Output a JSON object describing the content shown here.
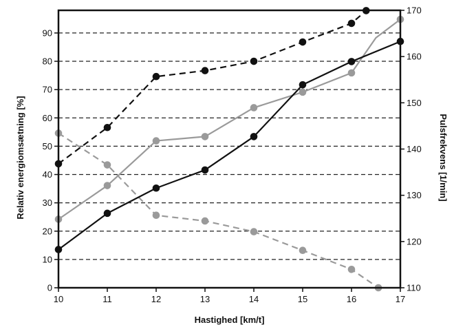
{
  "chart_data": {
    "type": "line",
    "xlabel": "Hastighed [km/t]",
    "ylabel_left": "Relativ energiomsætning [%]",
    "ylabel_right": "Pulsfrekvens [1/min]",
    "xlim": [
      10,
      17
    ],
    "ylim_left": [
      0,
      98
    ],
    "ylim_right": [
      110,
      170
    ],
    "x_ticks": [
      10,
      11,
      12,
      13,
      14,
      15,
      16,
      17
    ],
    "y_left_ticks": [
      0,
      10,
      20,
      30,
      40,
      50,
      60,
      70,
      80,
      90
    ],
    "y_right_ticks": [
      110,
      120,
      130,
      140,
      150,
      160,
      170
    ],
    "grid": "horizontal dashed at left-axis ticks",
    "series": [
      {
        "style": "black solid",
        "axis": "left",
        "color": "#111111",
        "dash": false,
        "points": [
          [
            10,
            13.5
          ],
          [
            11,
            26.3
          ],
          [
            12,
            35.2
          ],
          [
            13,
            41.6
          ],
          [
            14,
            53.4
          ],
          [
            15,
            71.7
          ],
          [
            16,
            79.9
          ],
          [
            17,
            87.0
          ]
        ]
      },
      {
        "style": "black dashed",
        "axis": "left",
        "color": "#111111",
        "dash": true,
        "points": [
          [
            10,
            43.8
          ],
          [
            11,
            56.6
          ],
          [
            12,
            74.6
          ],
          [
            13,
            76.7
          ],
          [
            14,
            80.0
          ],
          [
            15,
            86.8
          ],
          [
            16,
            93.4
          ],
          [
            16.3,
            97.9
          ]
        ]
      },
      {
        "style": "gray solid",
        "axis": "left",
        "color": "#9a9a9a",
        "dash": false,
        "points": [
          [
            10,
            24.2
          ],
          [
            11,
            36.1
          ],
          [
            12,
            51.9
          ],
          [
            13,
            53.4
          ],
          [
            14,
            63.6
          ],
          [
            15,
            69.1
          ],
          [
            16,
            75.9
          ],
          [
            16.5,
            88.3
          ],
          [
            17,
            94.8
          ]
        ],
        "markers_at": [
          10,
          11,
          12,
          13,
          14,
          15,
          16,
          17
        ]
      },
      {
        "style": "gray dashed",
        "axis": "left",
        "color": "#9a9a9a",
        "dash": true,
        "points": [
          [
            10,
            54.6
          ],
          [
            11,
            43.4
          ],
          [
            12,
            25.6
          ],
          [
            13,
            23.6
          ],
          [
            14,
            19.8
          ],
          [
            15,
            13.2
          ],
          [
            16,
            6.5
          ],
          [
            16.55,
            0
          ]
        ]
      }
    ]
  }
}
